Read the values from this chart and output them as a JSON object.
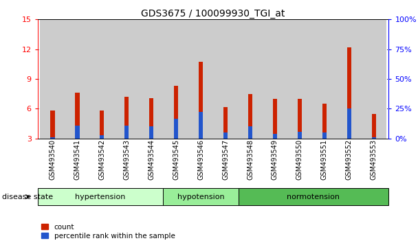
{
  "title": "GDS3675 / 100099930_TGI_at",
  "samples": [
    "GSM493540",
    "GSM493541",
    "GSM493542",
    "GSM493543",
    "GSM493544",
    "GSM493545",
    "GSM493546",
    "GSM493547",
    "GSM493548",
    "GSM493549",
    "GSM493550",
    "GSM493551",
    "GSM493552",
    "GSM493553"
  ],
  "count_values": [
    5.8,
    7.6,
    5.8,
    7.2,
    7.1,
    8.3,
    10.7,
    6.2,
    7.5,
    7.0,
    7.0,
    6.5,
    12.2,
    5.5
  ],
  "percentile_values": [
    3.1,
    4.3,
    3.3,
    4.3,
    4.2,
    5.0,
    5.7,
    3.6,
    4.2,
    3.5,
    3.7,
    3.6,
    6.0,
    3.1
  ],
  "bar_color": "#cc2200",
  "blue_color": "#2255cc",
  "ylim_left": [
    3,
    15
  ],
  "ylim_right": [
    0,
    100
  ],
  "yticks_left": [
    3,
    6,
    9,
    12,
    15
  ],
  "yticks_right": [
    0,
    25,
    50,
    75,
    100
  ],
  "groups": [
    {
      "label": "hypertension",
      "start": 0,
      "end": 5,
      "color": "#ccffcc"
    },
    {
      "label": "hypotension",
      "start": 5,
      "end": 8,
      "color": "#99ee99"
    },
    {
      "label": "normotension",
      "start": 8,
      "end": 14,
      "color": "#55bb55"
    }
  ],
  "xlabel_disease_state": "disease state",
  "legend_count": "count",
  "legend_percentile": "percentile rank within the sample",
  "bar_width": 0.18
}
